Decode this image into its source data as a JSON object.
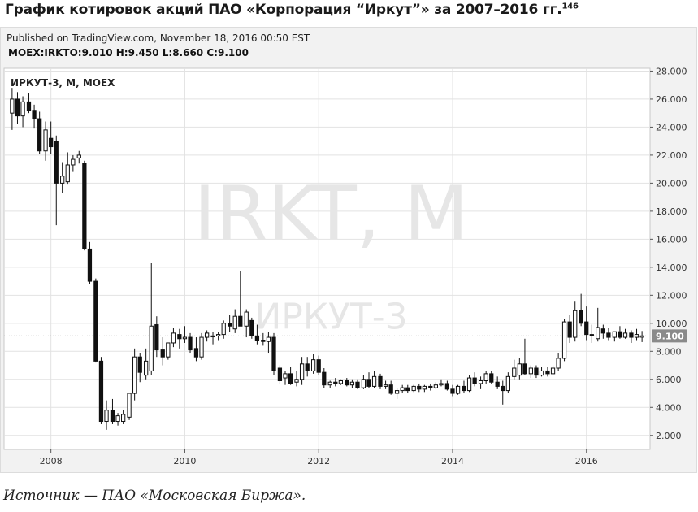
{
  "heading": {
    "title": "График котировок акций ПАО «Корпорация “Иркут”» за 2007–2016 гг.",
    "footnote": "146"
  },
  "published": "Published on TradingView.com, November 18, 2016 00:50 EST",
  "ohlc": {
    "symbol": "MOEX:IRKTO:",
    "open": "9.010",
    "high_label": "H:",
    "high": "9.450",
    "low_label": "L:",
    "low": "8.660",
    "close_label": "C:",
    "close": "9.100"
  },
  "source": "Источник — ПАО «Московская Биржа».",
  "colors": {
    "up_fill": "#ffffff",
    "down_fill": "#111111",
    "grid": "#e2e2e2",
    "plot_bg": "#ffffff",
    "watermark": "#e6e6e6"
  },
  "chart_data": {
    "type": "candlestick",
    "title": "ИРКУТ-3, М, MOEX",
    "watermark_main": "IRKT, M",
    "watermark_sub": "ИРКУТ-3",
    "current_price_label": "9.100",
    "xlabel": "",
    "ylabel": "",
    "x_ticks": [
      {
        "label": "2008",
        "t": 2008.0
      },
      {
        "label": "2010",
        "t": 2010.0
      },
      {
        "label": "2012",
        "t": 2012.0
      },
      {
        "label": "2014",
        "t": 2014.0
      },
      {
        "label": "2016",
        "t": 2016.0
      }
    ],
    "y_ticks": [
      "2.000",
      "4.000",
      "6.000",
      "8.000",
      "10.000",
      "12.000",
      "14.000",
      "16.000",
      "18.000",
      "20.000",
      "22.000",
      "24.000",
      "26.000",
      "28.000"
    ],
    "ylim": [
      1.0,
      28.2
    ],
    "xlim": [
      2007.3,
      2016.95
    ],
    "grid": true,
    "candles": [
      {
        "t": 2007.42,
        "o": 25.0,
        "h": 26.8,
        "l": 23.8,
        "c": 26.0
      },
      {
        "t": 2007.5,
        "o": 26.0,
        "h": 26.5,
        "l": 24.2,
        "c": 24.8
      },
      {
        "t": 2007.58,
        "o": 24.8,
        "h": 26.2,
        "l": 24.0,
        "c": 25.8
      },
      {
        "t": 2007.67,
        "o": 25.8,
        "h": 26.4,
        "l": 25.0,
        "c": 25.2
      },
      {
        "t": 2007.75,
        "o": 25.2,
        "h": 25.6,
        "l": 23.9,
        "c": 24.6
      },
      {
        "t": 2007.83,
        "o": 24.6,
        "h": 25.1,
        "l": 22.1,
        "c": 22.3
      },
      {
        "t": 2007.92,
        "o": 22.3,
        "h": 24.4,
        "l": 21.6,
        "c": 23.8
      },
      {
        "t": 2008.0,
        "o": 23.2,
        "h": 24.4,
        "l": 22.1,
        "c": 22.6
      },
      {
        "t": 2008.08,
        "o": 23.0,
        "h": 23.4,
        "l": 17.0,
        "c": 20.0
      },
      {
        "t": 2008.17,
        "o": 20.0,
        "h": 21.5,
        "l": 19.3,
        "c": 20.5
      },
      {
        "t": 2008.25,
        "o": 20.1,
        "h": 22.2,
        "l": 19.9,
        "c": 21.3
      },
      {
        "t": 2008.33,
        "o": 21.3,
        "h": 22.0,
        "l": 20.8,
        "c": 21.7
      },
      {
        "t": 2008.42,
        "o": 21.8,
        "h": 22.3,
        "l": 21.4,
        "c": 22.0
      },
      {
        "t": 2008.5,
        "o": 21.4,
        "h": 21.6,
        "l": 15.2,
        "c": 15.3
      },
      {
        "t": 2008.58,
        "o": 15.3,
        "h": 15.8,
        "l": 12.8,
        "c": 13.0
      },
      {
        "t": 2008.67,
        "o": 13.0,
        "h": 13.2,
        "l": 7.2,
        "c": 7.3
      },
      {
        "t": 2008.75,
        "o": 7.3,
        "h": 7.6,
        "l": 2.8,
        "c": 3.0
      },
      {
        "t": 2008.83,
        "o": 3.0,
        "h": 4.5,
        "l": 2.4,
        "c": 3.8
      },
      {
        "t": 2008.92,
        "o": 3.8,
        "h": 4.6,
        "l": 2.8,
        "c": 3.0
      },
      {
        "t": 2009.0,
        "o": 3.0,
        "h": 3.6,
        "l": 2.7,
        "c": 3.4
      },
      {
        "t": 2009.08,
        "o": 3.0,
        "h": 3.8,
        "l": 2.8,
        "c": 3.5
      },
      {
        "t": 2009.17,
        "o": 3.3,
        "h": 4.9,
        "l": 3.1,
        "c": 5.0
      },
      {
        "t": 2009.25,
        "o": 5.0,
        "h": 8.2,
        "l": 4.5,
        "c": 7.6
      },
      {
        "t": 2009.33,
        "o": 7.6,
        "h": 7.9,
        "l": 5.8,
        "c": 6.5
      },
      {
        "t": 2009.42,
        "o": 6.3,
        "h": 8.2,
        "l": 6.0,
        "c": 7.3
      },
      {
        "t": 2009.5,
        "o": 6.6,
        "h": 14.3,
        "l": 6.3,
        "c": 9.8
      },
      {
        "t": 2009.58,
        "o": 9.9,
        "h": 10.5,
        "l": 7.6,
        "c": 8.1
      },
      {
        "t": 2009.67,
        "o": 8.1,
        "h": 9.0,
        "l": 7.0,
        "c": 7.6
      },
      {
        "t": 2009.75,
        "o": 7.6,
        "h": 8.6,
        "l": 7.4,
        "c": 8.6
      },
      {
        "t": 2009.83,
        "o": 8.6,
        "h": 9.7,
        "l": 8.3,
        "c": 9.3
      },
      {
        "t": 2009.92,
        "o": 9.2,
        "h": 9.6,
        "l": 8.2,
        "c": 8.9
      },
      {
        "t": 2010.0,
        "o": 8.9,
        "h": 9.8,
        "l": 8.6,
        "c": 9.0
      },
      {
        "t": 2010.08,
        "o": 9.0,
        "h": 9.3,
        "l": 7.9,
        "c": 8.1
      },
      {
        "t": 2010.17,
        "o": 8.2,
        "h": 9.0,
        "l": 7.3,
        "c": 7.6
      },
      {
        "t": 2010.25,
        "o": 7.6,
        "h": 9.3,
        "l": 7.4,
        "c": 9.0
      },
      {
        "t": 2010.33,
        "o": 9.0,
        "h": 9.5,
        "l": 8.7,
        "c": 9.3
      },
      {
        "t": 2010.42,
        "o": 9.1,
        "h": 9.4,
        "l": 8.5,
        "c": 9.1
      },
      {
        "t": 2010.5,
        "o": 9.1,
        "h": 9.4,
        "l": 8.8,
        "c": 9.2
      },
      {
        "t": 2010.58,
        "o": 9.2,
        "h": 10.2,
        "l": 8.9,
        "c": 10.0
      },
      {
        "t": 2010.67,
        "o": 10.0,
        "h": 10.6,
        "l": 9.4,
        "c": 9.8
      },
      {
        "t": 2010.75,
        "o": 9.6,
        "h": 11.0,
        "l": 9.3,
        "c": 10.5
      },
      {
        "t": 2010.83,
        "o": 10.5,
        "h": 13.7,
        "l": 10.0,
        "c": 9.8
      },
      {
        "t": 2010.92,
        "o": 9.8,
        "h": 11.0,
        "l": 9.0,
        "c": 10.8
      },
      {
        "t": 2011.0,
        "o": 10.2,
        "h": 10.4,
        "l": 8.9,
        "c": 9.1
      },
      {
        "t": 2011.08,
        "o": 9.1,
        "h": 9.9,
        "l": 8.5,
        "c": 8.8
      },
      {
        "t": 2011.17,
        "o": 8.8,
        "h": 9.3,
        "l": 8.4,
        "c": 8.7
      },
      {
        "t": 2011.25,
        "o": 8.7,
        "h": 9.4,
        "l": 7.9,
        "c": 9.0
      },
      {
        "t": 2011.33,
        "o": 9.0,
        "h": 9.3,
        "l": 6.3,
        "c": 6.6
      },
      {
        "t": 2011.42,
        "o": 6.8,
        "h": 7.0,
        "l": 5.7,
        "c": 5.9
      },
      {
        "t": 2011.5,
        "o": 6.1,
        "h": 6.6,
        "l": 5.6,
        "c": 6.4
      },
      {
        "t": 2011.58,
        "o": 6.4,
        "h": 6.9,
        "l": 5.6,
        "c": 5.7
      },
      {
        "t": 2011.67,
        "o": 5.8,
        "h": 6.6,
        "l": 5.5,
        "c": 6.0
      },
      {
        "t": 2011.75,
        "o": 6.0,
        "h": 7.6,
        "l": 5.6,
        "c": 7.1
      },
      {
        "t": 2011.83,
        "o": 7.1,
        "h": 7.6,
        "l": 6.2,
        "c": 6.6
      },
      {
        "t": 2011.92,
        "o": 6.6,
        "h": 7.8,
        "l": 6.4,
        "c": 7.4
      },
      {
        "t": 2012.0,
        "o": 7.4,
        "h": 7.7,
        "l": 6.3,
        "c": 6.5
      },
      {
        "t": 2012.08,
        "o": 6.5,
        "h": 6.8,
        "l": 5.4,
        "c": 5.6
      },
      {
        "t": 2012.17,
        "o": 5.6,
        "h": 5.9,
        "l": 5.4,
        "c": 5.8
      },
      {
        "t": 2012.25,
        "o": 5.8,
        "h": 6.1,
        "l": 5.5,
        "c": 5.7
      },
      {
        "t": 2012.33,
        "o": 5.7,
        "h": 6.0,
        "l": 5.6,
        "c": 5.9
      },
      {
        "t": 2012.42,
        "o": 5.9,
        "h": 6.1,
        "l": 5.5,
        "c": 5.6
      },
      {
        "t": 2012.5,
        "o": 5.6,
        "h": 6.0,
        "l": 5.4,
        "c": 5.8
      },
      {
        "t": 2012.58,
        "o": 5.8,
        "h": 6.0,
        "l": 5.3,
        "c": 5.4
      },
      {
        "t": 2012.67,
        "o": 5.4,
        "h": 6.3,
        "l": 5.3,
        "c": 6.0
      },
      {
        "t": 2012.75,
        "o": 6.0,
        "h": 6.5,
        "l": 5.4,
        "c": 5.5
      },
      {
        "t": 2012.83,
        "o": 5.5,
        "h": 6.6,
        "l": 5.4,
        "c": 6.2
      },
      {
        "t": 2012.92,
        "o": 6.2,
        "h": 6.4,
        "l": 5.3,
        "c": 5.5
      },
      {
        "t": 2013.0,
        "o": 5.5,
        "h": 5.9,
        "l": 5.3,
        "c": 5.6
      },
      {
        "t": 2013.08,
        "o": 5.6,
        "h": 5.9,
        "l": 4.9,
        "c": 5.0
      },
      {
        "t": 2013.17,
        "o": 5.0,
        "h": 5.4,
        "l": 4.6,
        "c": 5.2
      },
      {
        "t": 2013.25,
        "o": 5.2,
        "h": 5.6,
        "l": 5.0,
        "c": 5.4
      },
      {
        "t": 2013.33,
        "o": 5.4,
        "h": 5.6,
        "l": 5.0,
        "c": 5.2
      },
      {
        "t": 2013.42,
        "o": 5.2,
        "h": 5.6,
        "l": 5.1,
        "c": 5.5
      },
      {
        "t": 2013.5,
        "o": 5.5,
        "h": 5.7,
        "l": 5.1,
        "c": 5.3
      },
      {
        "t": 2013.58,
        "o": 5.3,
        "h": 5.6,
        "l": 5.1,
        "c": 5.5
      },
      {
        "t": 2013.67,
        "o": 5.5,
        "h": 5.7,
        "l": 5.2,
        "c": 5.4
      },
      {
        "t": 2013.75,
        "o": 5.4,
        "h": 5.8,
        "l": 5.3,
        "c": 5.6
      },
      {
        "t": 2013.83,
        "o": 5.6,
        "h": 6.0,
        "l": 5.5,
        "c": 5.7
      },
      {
        "t": 2013.92,
        "o": 5.7,
        "h": 5.9,
        "l": 5.2,
        "c": 5.3
      },
      {
        "t": 2014.0,
        "o": 5.3,
        "h": 5.6,
        "l": 4.8,
        "c": 5.0
      },
      {
        "t": 2014.08,
        "o": 5.0,
        "h": 5.6,
        "l": 4.9,
        "c": 5.5
      },
      {
        "t": 2014.17,
        "o": 5.5,
        "h": 5.9,
        "l": 5.0,
        "c": 5.2
      },
      {
        "t": 2014.25,
        "o": 5.2,
        "h": 6.3,
        "l": 5.1,
        "c": 6.1
      },
      {
        "t": 2014.33,
        "o": 6.1,
        "h": 6.5,
        "l": 5.5,
        "c": 5.7
      },
      {
        "t": 2014.42,
        "o": 5.7,
        "h": 6.2,
        "l": 5.3,
        "c": 5.9
      },
      {
        "t": 2014.5,
        "o": 5.9,
        "h": 6.6,
        "l": 5.7,
        "c": 6.4
      },
      {
        "t": 2014.58,
        "o": 6.4,
        "h": 6.6,
        "l": 5.7,
        "c": 5.8
      },
      {
        "t": 2014.67,
        "o": 5.8,
        "h": 6.2,
        "l": 5.3,
        "c": 5.5
      },
      {
        "t": 2014.75,
        "o": 5.5,
        "h": 5.9,
        "l": 4.2,
        "c": 5.2
      },
      {
        "t": 2014.83,
        "o": 5.2,
        "h": 6.5,
        "l": 5.0,
        "c": 6.2
      },
      {
        "t": 2014.92,
        "o": 6.2,
        "h": 7.4,
        "l": 6.0,
        "c": 6.8
      },
      {
        "t": 2015.0,
        "o": 6.3,
        "h": 7.5,
        "l": 6.0,
        "c": 7.1
      },
      {
        "t": 2015.08,
        "o": 7.1,
        "h": 8.9,
        "l": 6.3,
        "c": 6.4
      },
      {
        "t": 2015.17,
        "o": 6.4,
        "h": 7.0,
        "l": 6.1,
        "c": 6.8
      },
      {
        "t": 2015.25,
        "o": 6.8,
        "h": 7.0,
        "l": 6.1,
        "c": 6.3
      },
      {
        "t": 2015.33,
        "o": 6.3,
        "h": 6.9,
        "l": 6.2,
        "c": 6.6
      },
      {
        "t": 2015.42,
        "o": 6.6,
        "h": 6.9,
        "l": 6.2,
        "c": 6.4
      },
      {
        "t": 2015.5,
        "o": 6.4,
        "h": 7.0,
        "l": 6.3,
        "c": 6.8
      },
      {
        "t": 2015.58,
        "o": 6.8,
        "h": 7.9,
        "l": 6.6,
        "c": 7.5
      },
      {
        "t": 2015.67,
        "o": 7.5,
        "h": 10.3,
        "l": 7.3,
        "c": 10.1
      },
      {
        "t": 2015.75,
        "o": 10.1,
        "h": 10.6,
        "l": 8.6,
        "c": 9.0
      },
      {
        "t": 2015.83,
        "o": 9.0,
        "h": 11.6,
        "l": 8.7,
        "c": 10.9
      },
      {
        "t": 2015.92,
        "o": 10.9,
        "h": 12.1,
        "l": 9.8,
        "c": 10.0
      },
      {
        "t": 2016.0,
        "o": 10.1,
        "h": 11.2,
        "l": 8.8,
        "c": 9.2
      },
      {
        "t": 2016.08,
        "o": 9.2,
        "h": 9.9,
        "l": 8.6,
        "c": 9.1
      },
      {
        "t": 2016.17,
        "o": 8.9,
        "h": 11.1,
        "l": 8.7,
        "c": 9.7
      },
      {
        "t": 2016.25,
        "o": 9.6,
        "h": 9.9,
        "l": 8.9,
        "c": 9.3
      },
      {
        "t": 2016.33,
        "o": 9.3,
        "h": 9.7,
        "l": 8.8,
        "c": 9.0
      },
      {
        "t": 2016.42,
        "o": 9.0,
        "h": 9.4,
        "l": 8.7,
        "c": 9.4
      },
      {
        "t": 2016.5,
        "o": 9.4,
        "h": 9.8,
        "l": 8.9,
        "c": 9.0
      },
      {
        "t": 2016.58,
        "o": 9.0,
        "h": 9.6,
        "l": 8.9,
        "c": 9.3
      },
      {
        "t": 2016.67,
        "o": 9.3,
        "h": 9.5,
        "l": 8.6,
        "c": 9.0
      },
      {
        "t": 2016.75,
        "o": 9.0,
        "h": 9.6,
        "l": 8.8,
        "c": 9.2
      },
      {
        "t": 2016.83,
        "o": 9.01,
        "h": 9.45,
        "l": 8.66,
        "c": 9.1
      }
    ]
  }
}
